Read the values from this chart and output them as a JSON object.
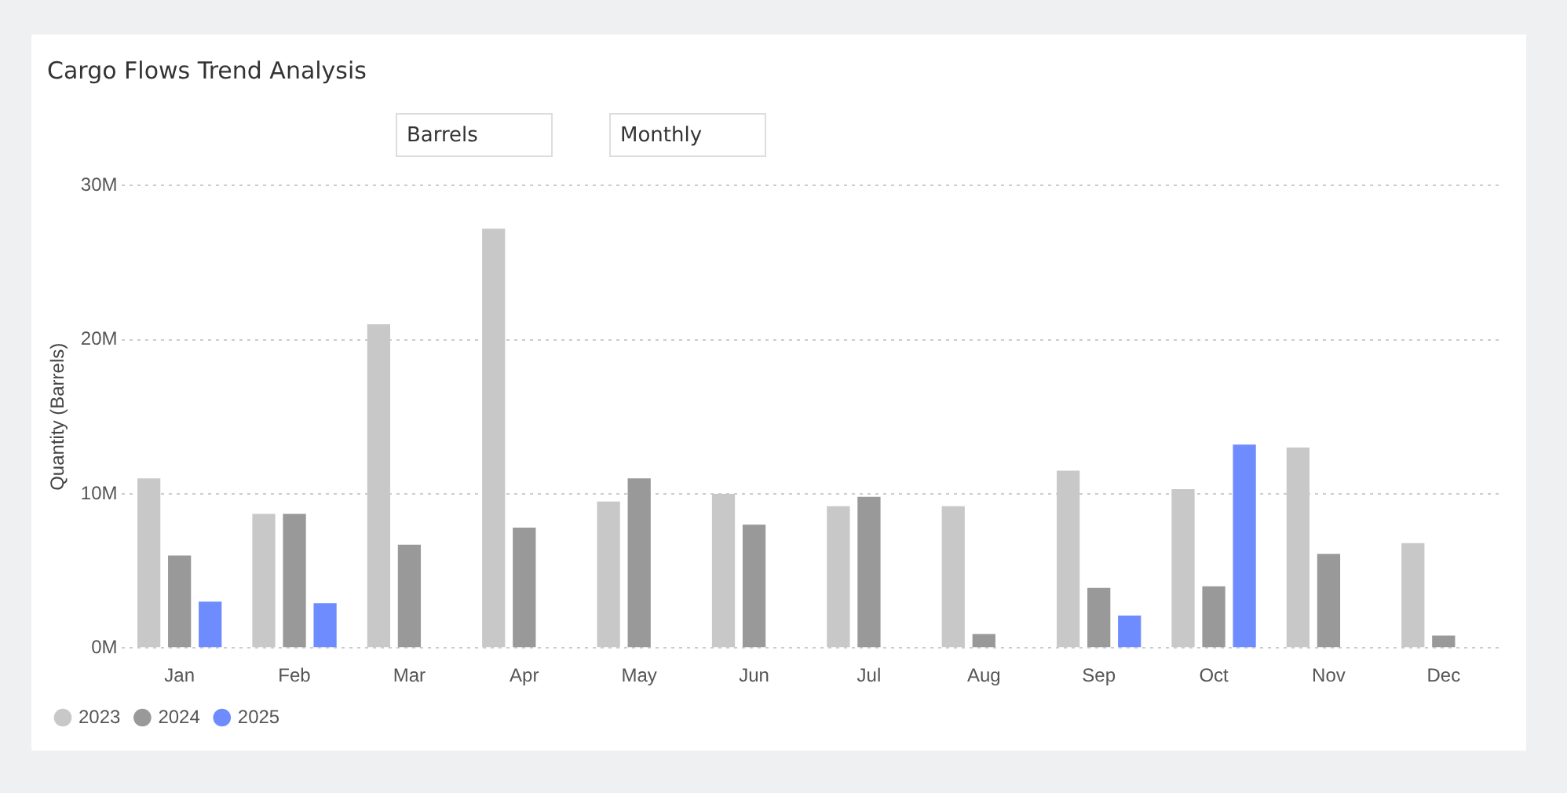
{
  "chart_data": {
    "type": "bar",
    "title": "Cargo Flows Trend Analysis",
    "annotations": [
      "Barrels",
      "Monthly"
    ],
    "ylabel": "Quantity (Barrels)",
    "categories": [
      "Jan",
      "Feb",
      "Mar",
      "Apr",
      "May",
      "Jun",
      "Jul",
      "Aug",
      "Sep",
      "Oct",
      "Nov",
      "Dec"
    ],
    "series": [
      {
        "name": "2023",
        "color": "#c8c8c8",
        "values": [
          11.0,
          8.7,
          21.0,
          27.2,
          9.5,
          10.0,
          9.2,
          9.2,
          11.5,
          10.3,
          13.0,
          6.8
        ]
      },
      {
        "name": "2024",
        "color": "#999999",
        "values": [
          6.0,
          8.7,
          6.7,
          7.8,
          11.0,
          8.0,
          9.8,
          0.9,
          3.9,
          4.0,
          6.1,
          0.8
        ]
      },
      {
        "name": "2025",
        "color": "#6f8cff",
        "values": [
          3.0,
          2.9,
          null,
          null,
          null,
          null,
          null,
          null,
          2.1,
          13.2,
          null,
          null
        ]
      }
    ],
    "ylim": [
      0,
      30
    ],
    "yticks": [
      {
        "value": 0,
        "label": "0M"
      },
      {
        "value": 10,
        "label": "10M"
      },
      {
        "value": 20,
        "label": "20M"
      },
      {
        "value": 30,
        "label": "30M"
      }
    ],
    "grid": "y",
    "legend": "bottom left"
  }
}
